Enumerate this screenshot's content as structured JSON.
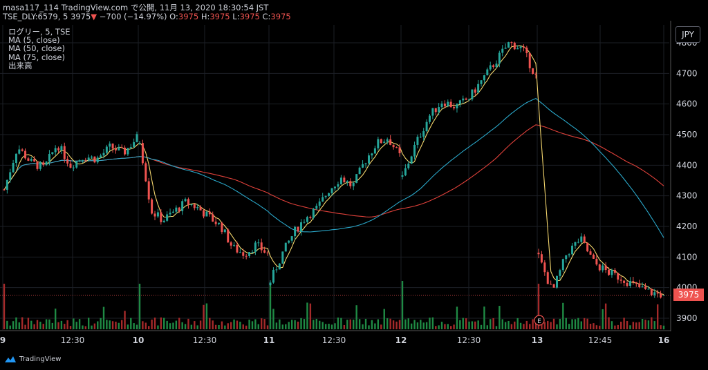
{
  "header": {
    "line1": "masa117_114 TradingView.com で公開, 11月 13, 2020 18:30:54 JST",
    "symbol": "TSE_DLY:6579, 5",
    "price": "3975",
    "arrow": "▼",
    "change": "−700 (−14.97%)",
    "o_label": " O:",
    "o_val": "3975",
    "h_label": " H:",
    "h_val": "3975",
    "l_label": " L:",
    "l_val": "3975",
    "c_label": " C:",
    "c_val": "3975"
  },
  "legend": {
    "title": "ログリー, 5, TSE",
    "ma1": "MA (5, close)",
    "ma2": "MA (50, close)",
    "ma3": "MA (75, close)",
    "volume": "出来高"
  },
  "currency_button": "JPY",
  "last_price_label": "3975",
  "brand": "TradingView",
  "earnings_marker": "E",
  "colors": {
    "up": "#26a69a",
    "down": "#ef5350",
    "ma5": "#f5d76e",
    "ma50": "#2aa7c9",
    "ma75": "#e0413a",
    "vol_up": "#1f8a44",
    "vol_down": "#a52a2a",
    "grid": "#1c1f26"
  },
  "chart_data": {
    "type": "candlestick",
    "y_axis": {
      "min": 3900,
      "max": 4800,
      "ticks": [
        3900,
        4000,
        4100,
        4200,
        4300,
        4400,
        4500,
        4600,
        4700,
        4800
      ]
    },
    "x_ticks": [
      "9",
      "12:30",
      "10",
      "12:30",
      "11",
      "12:30",
      "12",
      "12:30",
      "13",
      "12:45",
      "16"
    ],
    "last_price": 3975,
    "sessions": [
      {
        "day": "9",
        "close_path": [
          4320,
          4460,
          4410,
          4390,
          4470,
          4400,
          4430,
          4420,
          4460,
          4440,
          4490
        ]
      },
      {
        "day": "10",
        "close_path": [
          4480,
          4250,
          4220,
          4250,
          4280,
          4260,
          4230,
          4200,
          4130,
          4110,
          4140,
          4110
        ]
      },
      {
        "day": "11",
        "close_path": [
          4020,
          4110,
          4180,
          4230,
          4260,
          4320,
          4360,
          4330,
          4410,
          4470,
          4490,
          4430
        ]
      },
      {
        "day": "12",
        "close_path": [
          4360,
          4470,
          4560,
          4610,
          4590,
          4620,
          4680,
          4740,
          4800,
          4780,
          4690
        ]
      },
      {
        "day": "13",
        "close_path": [
          4100,
          3985,
          4110,
          4160,
          4080,
          4050,
          4030,
          4005,
          3985,
          3975
        ]
      }
    ],
    "ma5_end": 3975,
    "ma50_end": 4030,
    "ma75_end": 4220
  }
}
